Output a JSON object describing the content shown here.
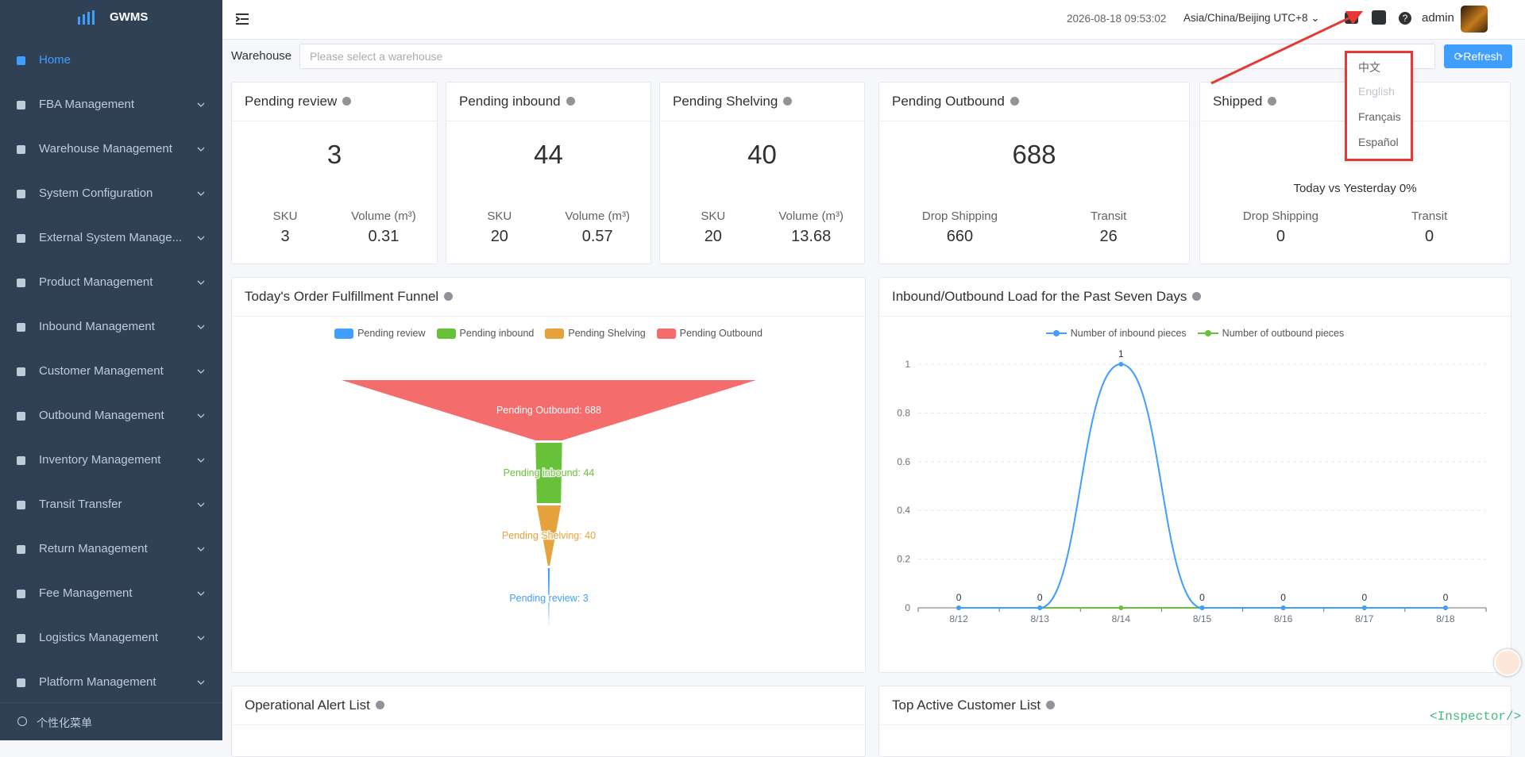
{
  "sidebar": {
    "brand": "GWMS",
    "menu": [
      "Home",
      "FBA Management",
      "Warehouse Management",
      "System Configuration",
      "External System Manage...",
      "Product Management",
      "Inbound Management",
      "Customer Management",
      "Outbound Management",
      "Inventory Management",
      "Transit Transfer",
      "Return Management",
      "Fee Management",
      "Logistics Management",
      "Platform Management"
    ],
    "footer": "个性化菜单"
  },
  "header": {
    "datetime": "2026-08-18 09:53:02",
    "timezone": "Asia/China/Beijing UTC+8",
    "user": "admin"
  },
  "filter": {
    "label": "Warehouse",
    "placeholder": "Please select a warehouse",
    "button": "Refresh"
  },
  "language_menu": {
    "items": [
      "中文",
      "English",
      "Français",
      "Español"
    ]
  },
  "cards": [
    {
      "title": "Pending review",
      "value": "3",
      "stats": [
        {
          "label": "SKU",
          "value": "3"
        },
        {
          "label": "Volume (m³)",
          "value": "0.31"
        }
      ]
    },
    {
      "title": "Pending inbound",
      "value": "44",
      "stats": [
        {
          "label": "SKU",
          "value": "20"
        },
        {
          "label": "Volume (m³)",
          "value": "0.57"
        }
      ]
    },
    {
      "title": "Pending Shelving",
      "value": "40",
      "stats": [
        {
          "label": "SKU",
          "value": "20"
        },
        {
          "label": "Volume (m³)",
          "value": "13.68"
        }
      ]
    },
    {
      "title": "Pending Outbound",
      "value": "688",
      "stats": [
        {
          "label": "Drop Shipping",
          "value": "660"
        },
        {
          "label": "Transit",
          "value": "26"
        }
      ]
    },
    {
      "title": "Shipped",
      "note": "Today vs Yesterday 0%",
      "stats": [
        {
          "label": "Drop Shipping",
          "value": "0"
        },
        {
          "label": "Transit",
          "value": "0"
        }
      ]
    }
  ],
  "chart_data": [
    {
      "type": "funnel",
      "title": "Today's Order Fulfillment Funnel",
      "sort": "descending",
      "categories": [
        "Pending review",
        "Pending inbound",
        "Pending Shelving",
        "Pending Outbound"
      ],
      "values": [
        3,
        44,
        40,
        688
      ],
      "value_labels": [
        "Pending review: 3",
        "Pending inbound: 44",
        "Pending Shelving: 40",
        "Pending Outbound: 688"
      ],
      "colors": [
        "#409eff",
        "#67c23a",
        "#e6a23c",
        "#f56c6c"
      ]
    },
    {
      "type": "line",
      "title": "Inbound/Outbound Load for the Past Seven Days",
      "categories": [
        "8/12",
        "8/13",
        "8/14",
        "8/15",
        "8/16",
        "8/17",
        "8/18"
      ],
      "series": [
        {
          "name": "Number of inbound pieces",
          "color": "#409eff",
          "values": [
            0,
            0,
            1,
            0,
            0,
            0,
            0
          ]
        },
        {
          "name": "Number of outbound pieces",
          "color": "#67c23a",
          "values": [
            0,
            0,
            0,
            0,
            0,
            0,
            0
          ]
        }
      ],
      "ylim": [
        0,
        1
      ],
      "yticks": [
        0,
        0.2,
        0.4,
        0.6,
        0.8,
        1
      ],
      "grid": true,
      "smooth": true
    }
  ],
  "bottom_panels": [
    "Operational Alert List",
    "Top Active Customer List"
  ],
  "watermark": "<Inspector/>"
}
